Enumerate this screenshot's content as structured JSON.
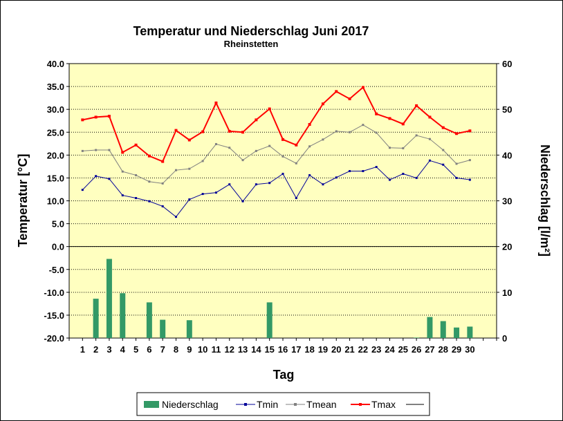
{
  "chart_data": {
    "type": "line",
    "title": "Temperatur und Niederschlag  Juni 2017",
    "subtitle": "Rheinstetten",
    "xlabel": "Tag",
    "ylabel": "Temperatur [°C]",
    "y2label": "Niederschlag [l/m²]",
    "ylim": [
      -20,
      40
    ],
    "y2lim": [
      0,
      60
    ],
    "y_ticks": [
      "40.0",
      "35.0",
      "30.0",
      "25.0",
      "20.0",
      "15.0",
      "10.0",
      "5.0",
      "0.0",
      "-5.0",
      "-10.0",
      "-15.0",
      "-20.0"
    ],
    "y2_ticks": [
      "60",
      "50",
      "40",
      "30",
      "20",
      "10",
      "0"
    ],
    "categories": [
      "1",
      "2",
      "3",
      "4",
      "5",
      "6",
      "7",
      "8",
      "9",
      "10",
      "11",
      "12",
      "13",
      "14",
      "15",
      "16",
      "17",
      "18",
      "19",
      "20",
      "21",
      "22",
      "23",
      "24",
      "25",
      "26",
      "27",
      "28",
      "29",
      "30"
    ],
    "grid": true,
    "plot_background": "#ffffc0",
    "legend_position": "bottom",
    "series": [
      {
        "name": "Niederschlag",
        "type": "bar",
        "axis": "y2",
        "color": "#339966",
        "values": [
          0,
          8.6,
          17.3,
          9.8,
          0,
          7.8,
          4.0,
          0,
          3.9,
          0,
          0,
          0,
          0,
          0,
          7.8,
          0,
          0,
          0,
          0,
          0,
          0,
          0,
          0,
          0,
          0,
          0.1,
          4.6,
          3.7,
          2.3,
          2.5
        ]
      },
      {
        "name": "Tmin",
        "type": "line",
        "axis": "y",
        "color": "#000099",
        "values": [
          12.4,
          15.4,
          14.8,
          11.2,
          10.6,
          9.9,
          8.8,
          6.5,
          10.3,
          11.5,
          11.8,
          13.6,
          9.9,
          13.6,
          13.9,
          15.9,
          10.6,
          15.6,
          13.6,
          15.1,
          16.5,
          16.5,
          17.4,
          14.6,
          15.9,
          15.0,
          18.8,
          17.9,
          15.0,
          14.6
        ]
      },
      {
        "name": "Tmean",
        "type": "line",
        "axis": "y",
        "color": "#808080",
        "values": [
          20.9,
          21.1,
          21.1,
          16.4,
          15.6,
          14.2,
          13.8,
          16.7,
          17.0,
          18.7,
          22.4,
          21.6,
          18.9,
          20.9,
          22.0,
          19.7,
          18.2,
          21.9,
          23.4,
          25.2,
          25.0,
          26.6,
          24.9,
          21.6,
          21.5,
          24.3,
          23.5,
          21.1,
          18.1,
          18.9
        ]
      },
      {
        "name": "Tmax",
        "type": "line",
        "axis": "y",
        "color": "#ff0000",
        "values": [
          27.7,
          28.3,
          28.5,
          20.6,
          22.2,
          19.8,
          18.6,
          25.4,
          23.3,
          25.1,
          31.4,
          25.2,
          25.0,
          27.7,
          30.1,
          23.4,
          22.2,
          26.7,
          31.2,
          33.9,
          32.3,
          34.8,
          29.0,
          28.0,
          26.8,
          30.8,
          28.3,
          26.0,
          24.7,
          25.3
        ]
      }
    ],
    "legend_entries": [
      "Niederschlag",
      "Tmin",
      "Tmean",
      "Tmax",
      ""
    ]
  }
}
